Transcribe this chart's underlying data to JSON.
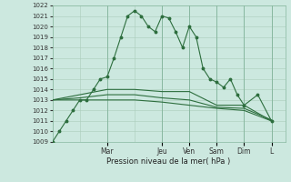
{
  "xlabel": "Pression niveau de la mer( hPa )",
  "ylim": [
    1009,
    1022
  ],
  "yticks": [
    1009,
    1010,
    1011,
    1012,
    1013,
    1014,
    1015,
    1016,
    1017,
    1018,
    1019,
    1020,
    1021,
    1022
  ],
  "day_labels": [
    "Mar",
    "Jeu",
    "Ven",
    "Sam",
    "Dim",
    "L"
  ],
  "day_positions": [
    16,
    32,
    40,
    48,
    56,
    64
  ],
  "xlim": [
    0,
    68
  ],
  "background_color": "#cce8df",
  "grid_color": "#aaccbb",
  "line_color": "#2d6e3e",
  "line1_x": [
    0,
    2,
    4,
    6,
    8,
    10,
    12,
    14,
    16,
    18,
    20,
    22,
    24,
    26,
    28,
    30,
    32,
    34,
    36,
    38,
    40,
    42,
    44,
    46,
    48,
    50,
    52,
    54,
    56,
    60,
    64
  ],
  "line1_y": [
    1009.0,
    1010.0,
    1011.0,
    1012.0,
    1013.0,
    1013.0,
    1014.0,
    1015.0,
    1015.2,
    1017.0,
    1019.0,
    1021.0,
    1021.5,
    1021.0,
    1020.0,
    1019.5,
    1021.0,
    1020.8,
    1019.5,
    1018.0,
    1020.0,
    1019.0,
    1016.0,
    1015.0,
    1014.7,
    1014.2,
    1015.0,
    1013.5,
    1012.5,
    1013.5,
    1011.0
  ],
  "line2_x": [
    0,
    8,
    16,
    24,
    32,
    40,
    48,
    56,
    64
  ],
  "line2_y": [
    1013.0,
    1013.5,
    1014.0,
    1014.0,
    1013.8,
    1013.8,
    1012.5,
    1012.5,
    1011.0
  ],
  "line3_x": [
    0,
    8,
    16,
    24,
    32,
    40,
    48,
    56,
    64
  ],
  "line3_y": [
    1013.0,
    1013.2,
    1013.5,
    1013.5,
    1013.2,
    1013.0,
    1012.3,
    1012.2,
    1011.1
  ],
  "line4_x": [
    0,
    8,
    16,
    24,
    32,
    40,
    48,
    56,
    64
  ],
  "line4_y": [
    1013.0,
    1013.0,
    1013.0,
    1013.0,
    1012.8,
    1012.5,
    1012.2,
    1012.0,
    1011.0
  ],
  "lw": 0.8,
  "ms": 1.8
}
